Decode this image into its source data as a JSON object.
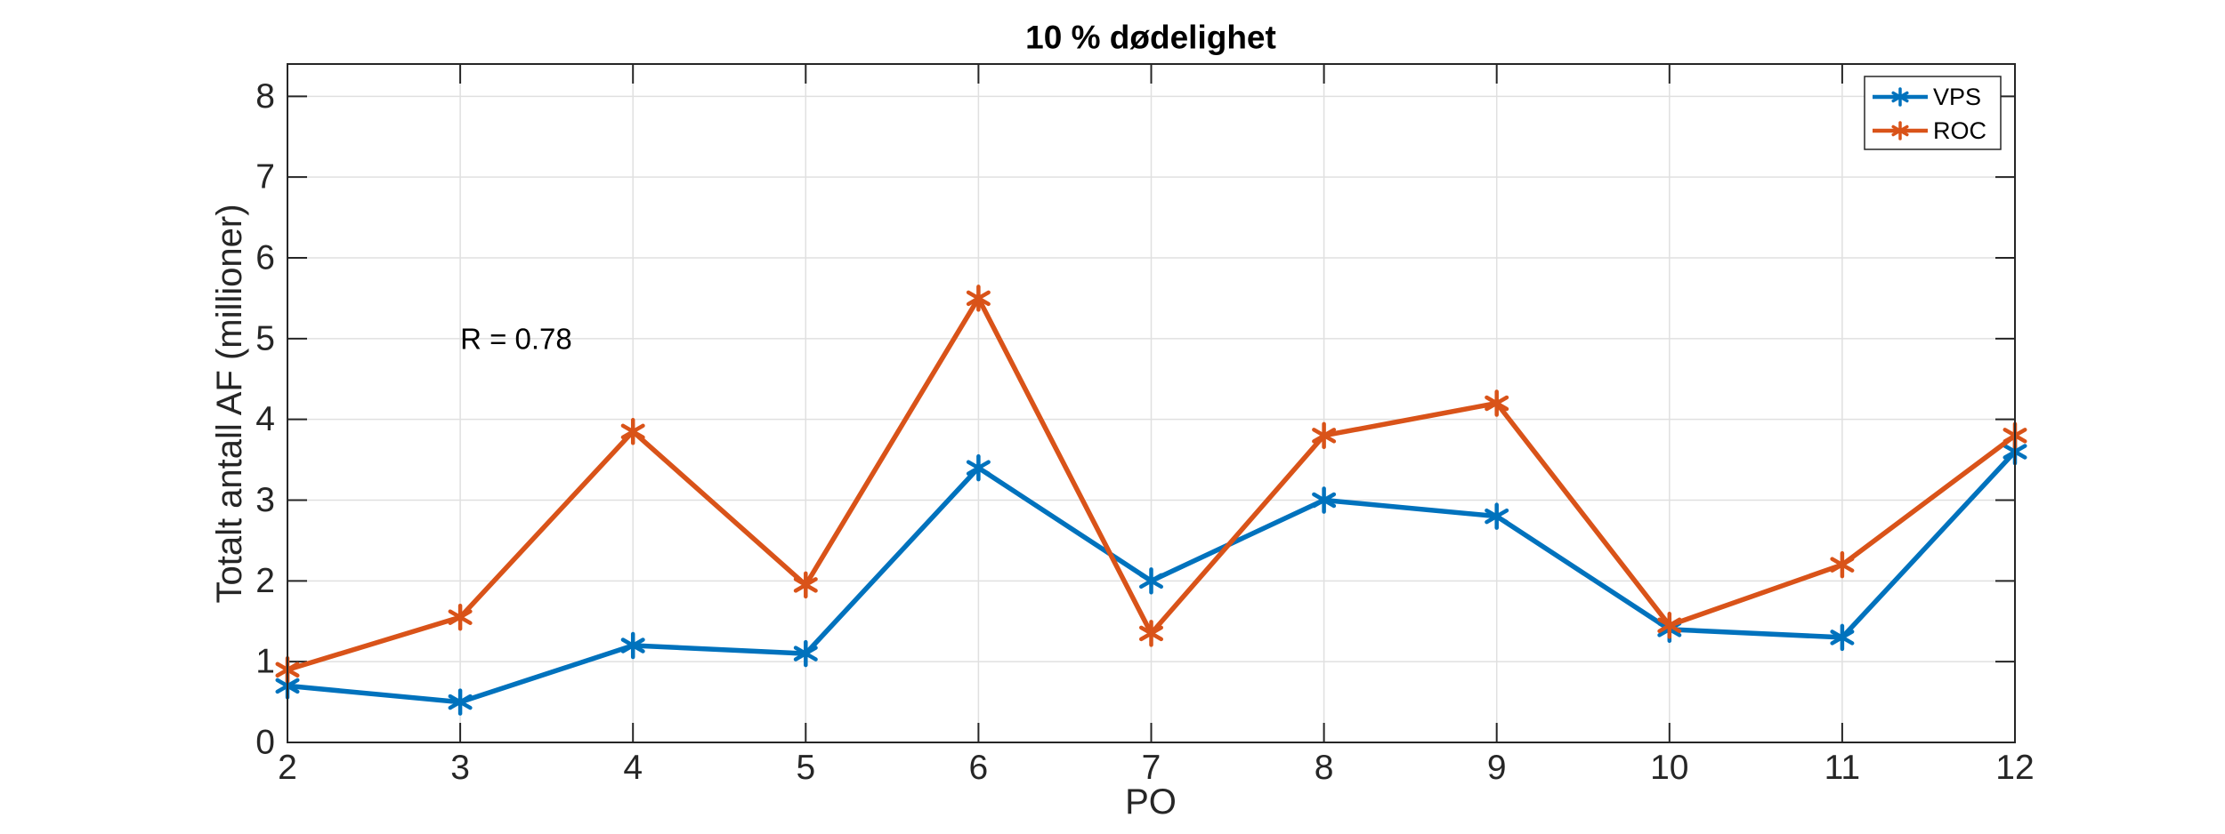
{
  "window": {
    "background": "#ffffff"
  },
  "chart_data": {
    "type": "line",
    "title": "10 % dødelighet",
    "xlabel": "PO",
    "ylabel": "Totalt antall AF (millioner)",
    "annotation": {
      "text": "R = 0.78",
      "x": 3,
      "y": 5
    },
    "x": [
      2,
      3,
      4,
      5,
      6,
      7,
      8,
      9,
      10,
      11,
      12
    ],
    "xticks": [
      2,
      3,
      4,
      5,
      6,
      7,
      8,
      9,
      10,
      11,
      12
    ],
    "yticks": [
      0,
      1,
      2,
      3,
      4,
      5,
      6,
      7,
      8
    ],
    "xlim": [
      2,
      12
    ],
    "ylim": [
      0,
      8.4
    ],
    "grid": true,
    "legend": {
      "position": "top-right"
    },
    "series": [
      {
        "name": "VPS",
        "color": "#0072BD",
        "marker": "asterisk",
        "values": [
          0.7,
          0.5,
          1.2,
          1.1,
          3.4,
          2.0,
          3.0,
          2.8,
          1.4,
          1.3,
          3.6
        ]
      },
      {
        "name": "ROC",
        "color": "#D95319",
        "marker": "asterisk",
        "values": [
          0.9,
          1.55,
          3.85,
          1.95,
          5.5,
          1.35,
          3.8,
          4.2,
          1.45,
          2.2,
          3.8
        ]
      }
    ],
    "styles": {
      "axis_color": "#262626",
      "grid_color": "#e0e0e0",
      "background": "#ffffff"
    }
  }
}
